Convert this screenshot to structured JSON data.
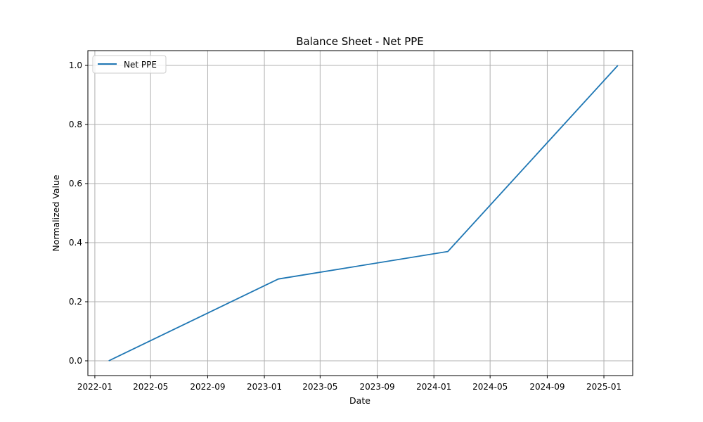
{
  "chart_data": {
    "type": "line",
    "title": "Balance Sheet - Net PPE",
    "xlabel": "Date",
    "ylabel": "Normalized Value",
    "grid": true,
    "legend_placement": "top-left",
    "x_ticks": [
      "2022-01",
      "2022-05",
      "2022-09",
      "2023-01",
      "2023-05",
      "2023-09",
      "2024-01",
      "2024-05",
      "2024-09",
      "2025-01"
    ],
    "y_ticks": [
      "0.0",
      "0.2",
      "0.4",
      "0.6",
      "0.8",
      "1.0"
    ],
    "xlim": [
      "2021-12-17",
      "2025-03-04"
    ],
    "ylim": [
      -0.05,
      1.05
    ],
    "series": [
      {
        "name": "Net PPE",
        "color": "#1f77b4",
        "x": [
          "2022-01-31",
          "2023-01-31",
          "2024-01-31",
          "2025-01-31"
        ],
        "y": [
          0.0,
          0.277,
          0.37,
          1.0
        ]
      }
    ]
  }
}
